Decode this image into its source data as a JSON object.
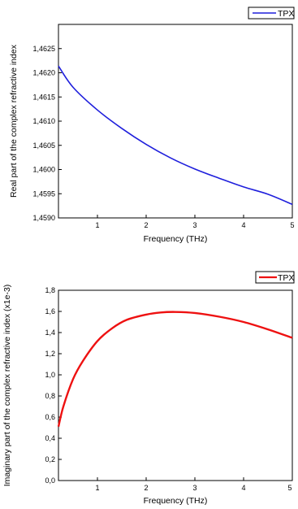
{
  "chart_data": [
    {
      "type": "line",
      "xlabel": "Frequency (THz)",
      "ylabel": "Real part of the complex refractive index",
      "xlim": [
        0.2,
        5
      ],
      "ylim": [
        1.459,
        1.463
      ],
      "x_ticks": [
        "1",
        "2",
        "3",
        "4",
        "5"
      ],
      "y_ticks": [
        "1,4590",
        "1,4595",
        "1,4600",
        "1,4605",
        "1,4610",
        "1,4615",
        "1,4620",
        "1,4625"
      ],
      "legend_placement": "top-right",
      "color": "#1f1fdc",
      "series": [
        {
          "name": "TPX",
          "x": [
            0.2,
            0.5,
            1.0,
            1.5,
            2.0,
            2.5,
            3.0,
            3.5,
            4.0,
            4.5,
            5.0
          ],
          "y": [
            1.46214,
            1.4617,
            1.46123,
            1.46085,
            1.46052,
            1.46024,
            1.46001,
            1.45982,
            1.45964,
            1.45949,
            1.45928
          ]
        }
      ]
    },
    {
      "type": "line",
      "xlabel": "Frequency (THz)",
      "ylabel": "Imaginary part of the complex refractive index (x1e-3)",
      "xlim": [
        0.2,
        5
      ],
      "ylim": [
        0,
        1.8
      ],
      "x_ticks": [
        "1",
        "2",
        "3",
        "4",
        "5"
      ],
      "y_ticks": [
        "0,0",
        "0,2",
        "0,4",
        "0,6",
        "0,8",
        "1,0",
        "1,2",
        "1,4",
        "1,6",
        "1,8"
      ],
      "legend_placement": "top-right",
      "color": "#ee1111",
      "series": [
        {
          "name": "TPX",
          "x": [
            0.2,
            0.3,
            0.5,
            0.7,
            1.0,
            1.3,
            1.6,
            2.0,
            2.3,
            2.6,
            3.0,
            3.5,
            4.0,
            4.5,
            5.0
          ],
          "y": [
            0.51,
            0.7,
            0.96,
            1.13,
            1.32,
            1.44,
            1.52,
            1.57,
            1.59,
            1.595,
            1.585,
            1.55,
            1.5,
            1.43,
            1.35
          ]
        }
      ]
    }
  ]
}
